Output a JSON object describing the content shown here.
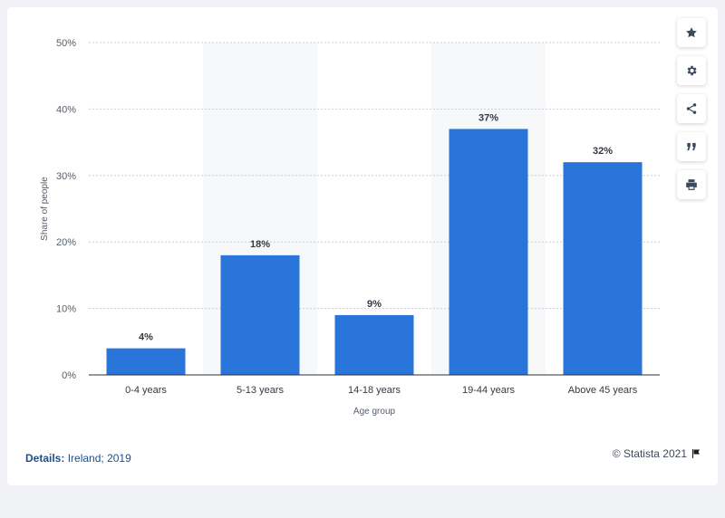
{
  "chart_data": {
    "type": "bar",
    "categories": [
      "0-4 years",
      "5-13 years",
      "14-18 years",
      "19-44 years",
      "Above 45 years"
    ],
    "values": [
      4,
      18,
      9,
      37,
      32
    ],
    "value_labels": [
      "4%",
      "18%",
      "9%",
      "37%",
      "32%"
    ],
    "xlabel": "Age group",
    "ylabel": "Share of people",
    "ylim": [
      0,
      50
    ],
    "yticks": [
      0,
      10,
      20,
      30,
      40,
      50
    ],
    "ytick_labels": [
      "0%",
      "10%",
      "20%",
      "30%",
      "40%",
      "50%"
    ],
    "grid": true,
    "bar_color": "#2a75d9",
    "band_color": "#f7f8fa"
  },
  "toolbar": {
    "items": [
      {
        "name": "star-icon"
      },
      {
        "name": "gear-icon"
      },
      {
        "name": "share-icon"
      },
      {
        "name": "quote-icon"
      },
      {
        "name": "print-icon"
      }
    ]
  },
  "footer": {
    "details_label": "Details:",
    "details_value": "Ireland; 2019",
    "copyright": "© Statista 2021"
  }
}
